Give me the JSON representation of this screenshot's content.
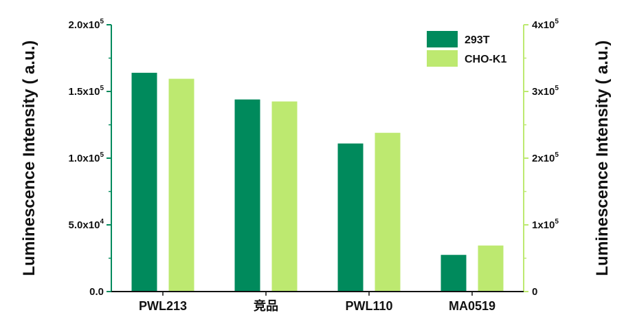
{
  "chart_data": {
    "type": "bar",
    "categories": [
      "PWL213",
      "竞品",
      "PWL110",
      "MA0519"
    ],
    "series": [
      {
        "name": "293T",
        "values": [
          164000,
          144000,
          111000,
          27500
        ],
        "axis": "left",
        "color": "#008a5c"
      },
      {
        "name": "CHO-K1",
        "values": [
          319000,
          285000,
          238000,
          69000
        ],
        "axis": "right",
        "color": "#bde970"
      }
    ],
    "left_axis": {
      "title": "Luminescence Intensity ( a.u.)",
      "ylim": [
        0,
        200000
      ],
      "ticks": [
        {
          "value": 0,
          "mantissa": "0.0",
          "exp": ""
        },
        {
          "value": 50000,
          "mantissa": "5.0x10",
          "exp": "4"
        },
        {
          "value": 100000,
          "mantissa": "1.0x10",
          "exp": "5"
        },
        {
          "value": 150000,
          "mantissa": "1.5x10",
          "exp": "5"
        },
        {
          "value": 200000,
          "mantissa": "2.0x10",
          "exp": "5"
        }
      ],
      "color": "#008a5c"
    },
    "right_axis": {
      "title": "Luminescence Intensity ( a.u.)",
      "ylim": [
        0,
        400000
      ],
      "ticks": [
        {
          "value": 0,
          "mantissa": "0",
          "exp": ""
        },
        {
          "value": 100000,
          "mantissa": "1x10",
          "exp": "5"
        },
        {
          "value": 200000,
          "mantissa": "2x10",
          "exp": "5"
        },
        {
          "value": 300000,
          "mantissa": "3x10",
          "exp": "5"
        },
        {
          "value": 400000,
          "mantissa": "4x10",
          "exp": "5"
        }
      ],
      "color": "#bde970"
    },
    "grid": false,
    "legend_position": "top-right"
  }
}
